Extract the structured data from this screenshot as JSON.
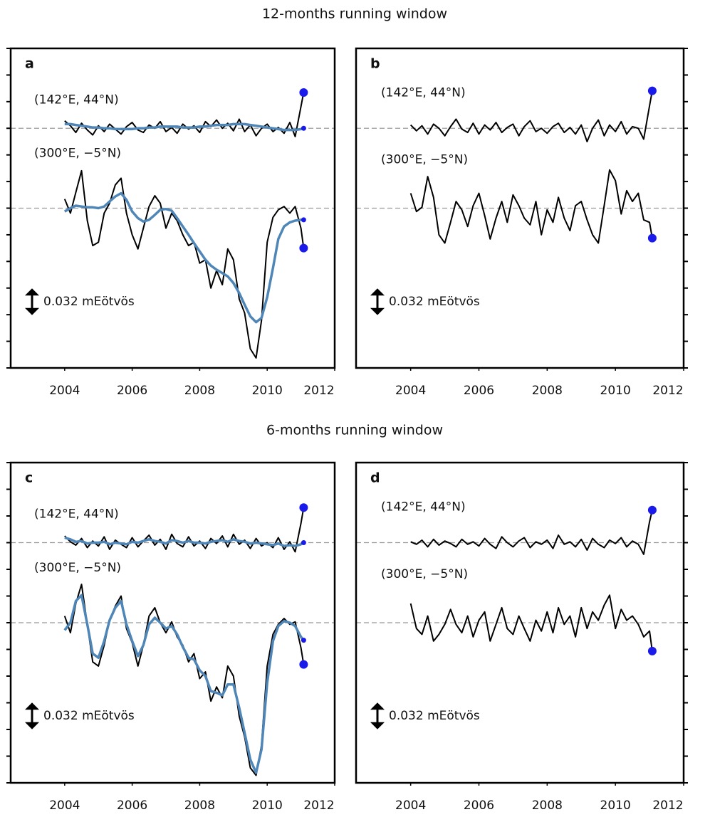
{
  "headers": [
    "12-months running window",
    "6-months running window"
  ],
  "chart_data": [
    {
      "type": "line",
      "panel_label": "a",
      "ytick_side": "left",
      "xlim": [
        2002.4,
        2012
      ],
      "xticks": [
        2004,
        2006,
        2008,
        2010,
        2012
      ],
      "ylim": [
        0,
        0.384
      ],
      "yticks": [
        0,
        0.032,
        0.064,
        0.096,
        0.128,
        0.16,
        0.192,
        0.224,
        0.256,
        0.288,
        0.32,
        0.352,
        0.384
      ],
      "reference_lines": [
        0.288,
        0.192
      ],
      "annotations": [
        "(142°E, 44°N)",
        "(300°E, −5°N)"
      ],
      "scale_bar": {
        "value": 0.032,
        "label": "0.032 mEötvös"
      },
      "x": [
        2004.0,
        2004.17,
        2004.33,
        2004.5,
        2004.67,
        2004.83,
        2005.0,
        2005.17,
        2005.33,
        2005.5,
        2005.67,
        2005.83,
        2006.0,
        2006.17,
        2006.33,
        2006.5,
        2006.67,
        2006.83,
        2007.0,
        2007.17,
        2007.33,
        2007.5,
        2007.67,
        2007.83,
        2008.0,
        2008.17,
        2008.33,
        2008.5,
        2008.67,
        2008.83,
        2009.0,
        2009.17,
        2009.33,
        2009.5,
        2009.67,
        2009.83,
        2010.0,
        2010.17,
        2010.33,
        2010.5,
        2010.67,
        2010.83,
        2011.0,
        2011.08
      ],
      "series": [
        {
          "color": "#000000",
          "end_marker": "large",
          "values": [
            0.297,
            0.291,
            0.283,
            0.294,
            0.286,
            0.28,
            0.291,
            0.284,
            0.293,
            0.287,
            0.281,
            0.29,
            0.295,
            0.286,
            0.283,
            0.292,
            0.288,
            0.296,
            0.284,
            0.289,
            0.282,
            0.293,
            0.287,
            0.291,
            0.283,
            0.296,
            0.29,
            0.298,
            0.288,
            0.294,
            0.285,
            0.299,
            0.284,
            0.292,
            0.279,
            0.288,
            0.293,
            0.284,
            0.289,
            0.282,
            0.295,
            0.278,
            0.314,
            0.331
          ]
        },
        {
          "color": "#4f86b8",
          "end_marker": "small",
          "values": [
            0.293,
            0.293,
            0.292,
            0.291,
            0.29,
            0.289,
            0.289,
            0.288,
            0.288,
            0.287,
            0.287,
            0.287,
            0.287,
            0.288,
            0.288,
            0.289,
            0.289,
            0.29,
            0.29,
            0.29,
            0.29,
            0.289,
            0.289,
            0.289,
            0.29,
            0.29,
            0.291,
            0.292,
            0.292,
            0.292,
            0.293,
            0.293,
            0.293,
            0.292,
            0.291,
            0.29,
            0.289,
            0.288,
            0.287,
            0.286,
            0.286,
            0.286,
            0.287,
            0.288
          ]
        },
        {
          "color": "#000000",
          "end_marker": "large",
          "values": [
            0.203,
            0.186,
            0.211,
            0.237,
            0.177,
            0.147,
            0.151,
            0.186,
            0.198,
            0.22,
            0.228,
            0.186,
            0.16,
            0.143,
            0.168,
            0.194,
            0.207,
            0.198,
            0.168,
            0.186,
            0.177,
            0.16,
            0.147,
            0.151,
            0.126,
            0.13,
            0.096,
            0.117,
            0.1,
            0.143,
            0.13,
            0.083,
            0.066,
            0.023,
            0.012,
            0.057,
            0.151,
            0.181,
            0.19,
            0.194,
            0.186,
            0.194,
            0.168,
            0.144
          ]
        },
        {
          "color": "#4f86b8",
          "end_marker": "small",
          "values": [
            0.188,
            0.192,
            0.195,
            0.194,
            0.193,
            0.193,
            0.192,
            0.194,
            0.2,
            0.206,
            0.21,
            0.202,
            0.188,
            0.18,
            0.176,
            0.178,
            0.184,
            0.19,
            0.191,
            0.189,
            0.18,
            0.17,
            0.16,
            0.15,
            0.14,
            0.13,
            0.123,
            0.118,
            0.114,
            0.11,
            0.102,
            0.09,
            0.076,
            0.062,
            0.055,
            0.06,
            0.085,
            0.12,
            0.155,
            0.17,
            0.175,
            0.177,
            0.178,
            0.178
          ]
        }
      ]
    },
    {
      "type": "line",
      "panel_label": "b",
      "ytick_side": "right",
      "xlim": [
        2002.4,
        2012
      ],
      "xticks": [
        2004,
        2006,
        2008,
        2010,
        2012
      ],
      "ylim": [
        0,
        0.384
      ],
      "yticks": [
        0,
        0.032,
        0.064,
        0.096,
        0.128,
        0.16,
        0.192,
        0.224,
        0.256,
        0.288,
        0.32,
        0.352,
        0.384
      ],
      "reference_lines": [
        0.288,
        0.192
      ],
      "annotations": [
        "(142°E, 44°N)",
        "(300°E, −5°N)"
      ],
      "scale_bar": {
        "value": 0.032,
        "label": "0.032 mEötvös"
      },
      "x": [
        2004.0,
        2004.17,
        2004.33,
        2004.5,
        2004.67,
        2004.83,
        2005.0,
        2005.17,
        2005.33,
        2005.5,
        2005.67,
        2005.83,
        2006.0,
        2006.17,
        2006.33,
        2006.5,
        2006.67,
        2006.83,
        2007.0,
        2007.17,
        2007.33,
        2007.5,
        2007.67,
        2007.83,
        2008.0,
        2008.17,
        2008.33,
        2008.5,
        2008.67,
        2008.83,
        2009.0,
        2009.17,
        2009.33,
        2009.5,
        2009.67,
        2009.83,
        2010.0,
        2010.17,
        2010.33,
        2010.5,
        2010.67,
        2010.83,
        2011.0,
        2011.08
      ],
      "series": [
        {
          "color": "#000000",
          "end_marker": "large",
          "values": [
            0.292,
            0.285,
            0.291,
            0.281,
            0.293,
            0.288,
            0.279,
            0.29,
            0.299,
            0.287,
            0.283,
            0.294,
            0.281,
            0.292,
            0.286,
            0.295,
            0.283,
            0.289,
            0.293,
            0.279,
            0.29,
            0.297,
            0.284,
            0.288,
            0.282,
            0.29,
            0.294,
            0.283,
            0.289,
            0.281,
            0.292,
            0.272,
            0.288,
            0.298,
            0.279,
            0.292,
            0.284,
            0.296,
            0.281,
            0.29,
            0.288,
            0.275,
            0.315,
            0.333
          ]
        },
        {
          "color": "#000000",
          "end_marker": "large",
          "values": [
            0.21,
            0.188,
            0.193,
            0.23,
            0.205,
            0.16,
            0.15,
            0.175,
            0.2,
            0.19,
            0.17,
            0.195,
            0.21,
            0.183,
            0.155,
            0.18,
            0.2,
            0.175,
            0.208,
            0.195,
            0.18,
            0.172,
            0.2,
            0.16,
            0.19,
            0.175,
            0.205,
            0.18,
            0.165,
            0.195,
            0.2,
            0.178,
            0.16,
            0.15,
            0.195,
            0.238,
            0.225,
            0.185,
            0.213,
            0.2,
            0.21,
            0.178,
            0.175,
            0.156
          ]
        }
      ]
    },
    {
      "type": "line",
      "panel_label": "c",
      "ytick_side": "left",
      "xlim": [
        2002.4,
        2012
      ],
      "xticks": [
        2004,
        2006,
        2008,
        2010,
        2012
      ],
      "ylim": [
        0,
        0.384
      ],
      "yticks": [
        0,
        0.032,
        0.064,
        0.096,
        0.128,
        0.16,
        0.192,
        0.224,
        0.256,
        0.288,
        0.32,
        0.352,
        0.384
      ],
      "reference_lines": [
        0.288,
        0.192
      ],
      "annotations": [
        "(142°E, 44°N)",
        "(300°E, −5°N)"
      ],
      "scale_bar": {
        "value": 0.032,
        "label": "0.032 mEötvös"
      },
      "x": [
        2004.0,
        2004.17,
        2004.33,
        2004.5,
        2004.67,
        2004.83,
        2005.0,
        2005.17,
        2005.33,
        2005.5,
        2005.67,
        2005.83,
        2006.0,
        2006.17,
        2006.33,
        2006.5,
        2006.67,
        2006.83,
        2007.0,
        2007.17,
        2007.33,
        2007.5,
        2007.67,
        2007.83,
        2008.0,
        2008.17,
        2008.33,
        2008.5,
        2008.67,
        2008.83,
        2009.0,
        2009.17,
        2009.33,
        2009.5,
        2009.67,
        2009.83,
        2010.0,
        2010.17,
        2010.33,
        2010.5,
        2010.67,
        2010.83,
        2011.0,
        2011.08
      ],
      "series": [
        {
          "color": "#000000",
          "end_marker": "large",
          "values": [
            0.296,
            0.289,
            0.285,
            0.293,
            0.282,
            0.29,
            0.284,
            0.295,
            0.28,
            0.291,
            0.286,
            0.282,
            0.294,
            0.283,
            0.29,
            0.297,
            0.285,
            0.292,
            0.28,
            0.298,
            0.287,
            0.283,
            0.295,
            0.284,
            0.29,
            0.281,
            0.293,
            0.287,
            0.296,
            0.283,
            0.298,
            0.286,
            0.291,
            0.281,
            0.293,
            0.284,
            0.288,
            0.282,
            0.294,
            0.28,
            0.289,
            0.277,
            0.311,
            0.33
          ]
        },
        {
          "color": "#4f86b8",
          "end_marker": "small",
          "values": [
            0.294,
            0.292,
            0.289,
            0.29,
            0.287,
            0.288,
            0.288,
            0.289,
            0.286,
            0.288,
            0.287,
            0.286,
            0.289,
            0.288,
            0.29,
            0.292,
            0.29,
            0.289,
            0.287,
            0.291,
            0.29,
            0.288,
            0.29,
            0.288,
            0.288,
            0.287,
            0.289,
            0.29,
            0.291,
            0.289,
            0.292,
            0.29,
            0.289,
            0.287,
            0.288,
            0.287,
            0.286,
            0.285,
            0.287,
            0.284,
            0.285,
            0.284,
            0.286,
            0.288
          ]
        },
        {
          "color": "#000000",
          "end_marker": "large",
          "values": [
            0.2,
            0.18,
            0.215,
            0.238,
            0.19,
            0.145,
            0.14,
            0.165,
            0.195,
            0.212,
            0.224,
            0.185,
            0.168,
            0.14,
            0.165,
            0.2,
            0.21,
            0.192,
            0.18,
            0.193,
            0.175,
            0.165,
            0.145,
            0.155,
            0.125,
            0.133,
            0.098,
            0.115,
            0.102,
            0.14,
            0.128,
            0.08,
            0.055,
            0.018,
            0.009,
            0.045,
            0.14,
            0.178,
            0.19,
            0.197,
            0.19,
            0.193,
            0.162,
            0.142
          ]
        },
        {
          "color": "#4f86b8",
          "end_marker": "small",
          "values": [
            0.183,
            0.192,
            0.218,
            0.225,
            0.19,
            0.155,
            0.15,
            0.17,
            0.195,
            0.21,
            0.218,
            0.19,
            0.17,
            0.152,
            0.165,
            0.19,
            0.198,
            0.192,
            0.185,
            0.188,
            0.178,
            0.163,
            0.15,
            0.148,
            0.135,
            0.128,
            0.11,
            0.108,
            0.105,
            0.118,
            0.118,
            0.09,
            0.06,
            0.028,
            0.012,
            0.04,
            0.12,
            0.17,
            0.188,
            0.194,
            0.192,
            0.188,
            0.175,
            0.171
          ]
        }
      ]
    },
    {
      "type": "line",
      "panel_label": "d",
      "ytick_side": "right",
      "xlim": [
        2002.4,
        2012
      ],
      "xticks": [
        2004,
        2006,
        2008,
        2010,
        2012
      ],
      "ylim": [
        0,
        0.384
      ],
      "yticks": [
        0,
        0.032,
        0.064,
        0.096,
        0.128,
        0.16,
        0.192,
        0.224,
        0.256,
        0.288,
        0.32,
        0.352,
        0.384
      ],
      "reference_lines": [
        0.288,
        0.192
      ],
      "annotations": [
        "(142°E, 44°N)",
        "(300°E, −5°N)"
      ],
      "scale_bar": {
        "value": 0.032,
        "label": "0.032 mEötvös"
      },
      "x": [
        2004.0,
        2004.17,
        2004.33,
        2004.5,
        2004.67,
        2004.83,
        2005.0,
        2005.17,
        2005.33,
        2005.5,
        2005.67,
        2005.83,
        2006.0,
        2006.17,
        2006.33,
        2006.5,
        2006.67,
        2006.83,
        2007.0,
        2007.17,
        2007.33,
        2007.5,
        2007.67,
        2007.83,
        2008.0,
        2008.17,
        2008.33,
        2008.5,
        2008.67,
        2008.83,
        2009.0,
        2009.17,
        2009.33,
        2009.5,
        2009.67,
        2009.83,
        2010.0,
        2010.17,
        2010.33,
        2010.5,
        2010.67,
        2010.83,
        2011.0,
        2011.08
      ],
      "series": [
        {
          "color": "#000000",
          "end_marker": "large",
          "values": [
            0.289,
            0.286,
            0.291,
            0.283,
            0.292,
            0.285,
            0.29,
            0.287,
            0.283,
            0.292,
            0.286,
            0.289,
            0.284,
            0.293,
            0.286,
            0.281,
            0.295,
            0.288,
            0.283,
            0.29,
            0.294,
            0.282,
            0.289,
            0.286,
            0.291,
            0.281,
            0.297,
            0.286,
            0.289,
            0.283,
            0.292,
            0.279,
            0.293,
            0.286,
            0.282,
            0.291,
            0.287,
            0.294,
            0.283,
            0.29,
            0.286,
            0.274,
            0.313,
            0.327
          ]
        },
        {
          "color": "#000000",
          "end_marker": "large",
          "values": [
            0.215,
            0.185,
            0.178,
            0.2,
            0.17,
            0.178,
            0.19,
            0.208,
            0.19,
            0.18,
            0.2,
            0.175,
            0.195,
            0.205,
            0.17,
            0.19,
            0.21,
            0.185,
            0.178,
            0.2,
            0.185,
            0.17,
            0.195,
            0.182,
            0.205,
            0.18,
            0.21,
            0.19,
            0.2,
            0.175,
            0.21,
            0.185,
            0.205,
            0.195,
            0.213,
            0.225,
            0.185,
            0.208,
            0.195,
            0.2,
            0.19,
            0.175,
            0.182,
            0.158
          ]
        }
      ]
    }
  ]
}
